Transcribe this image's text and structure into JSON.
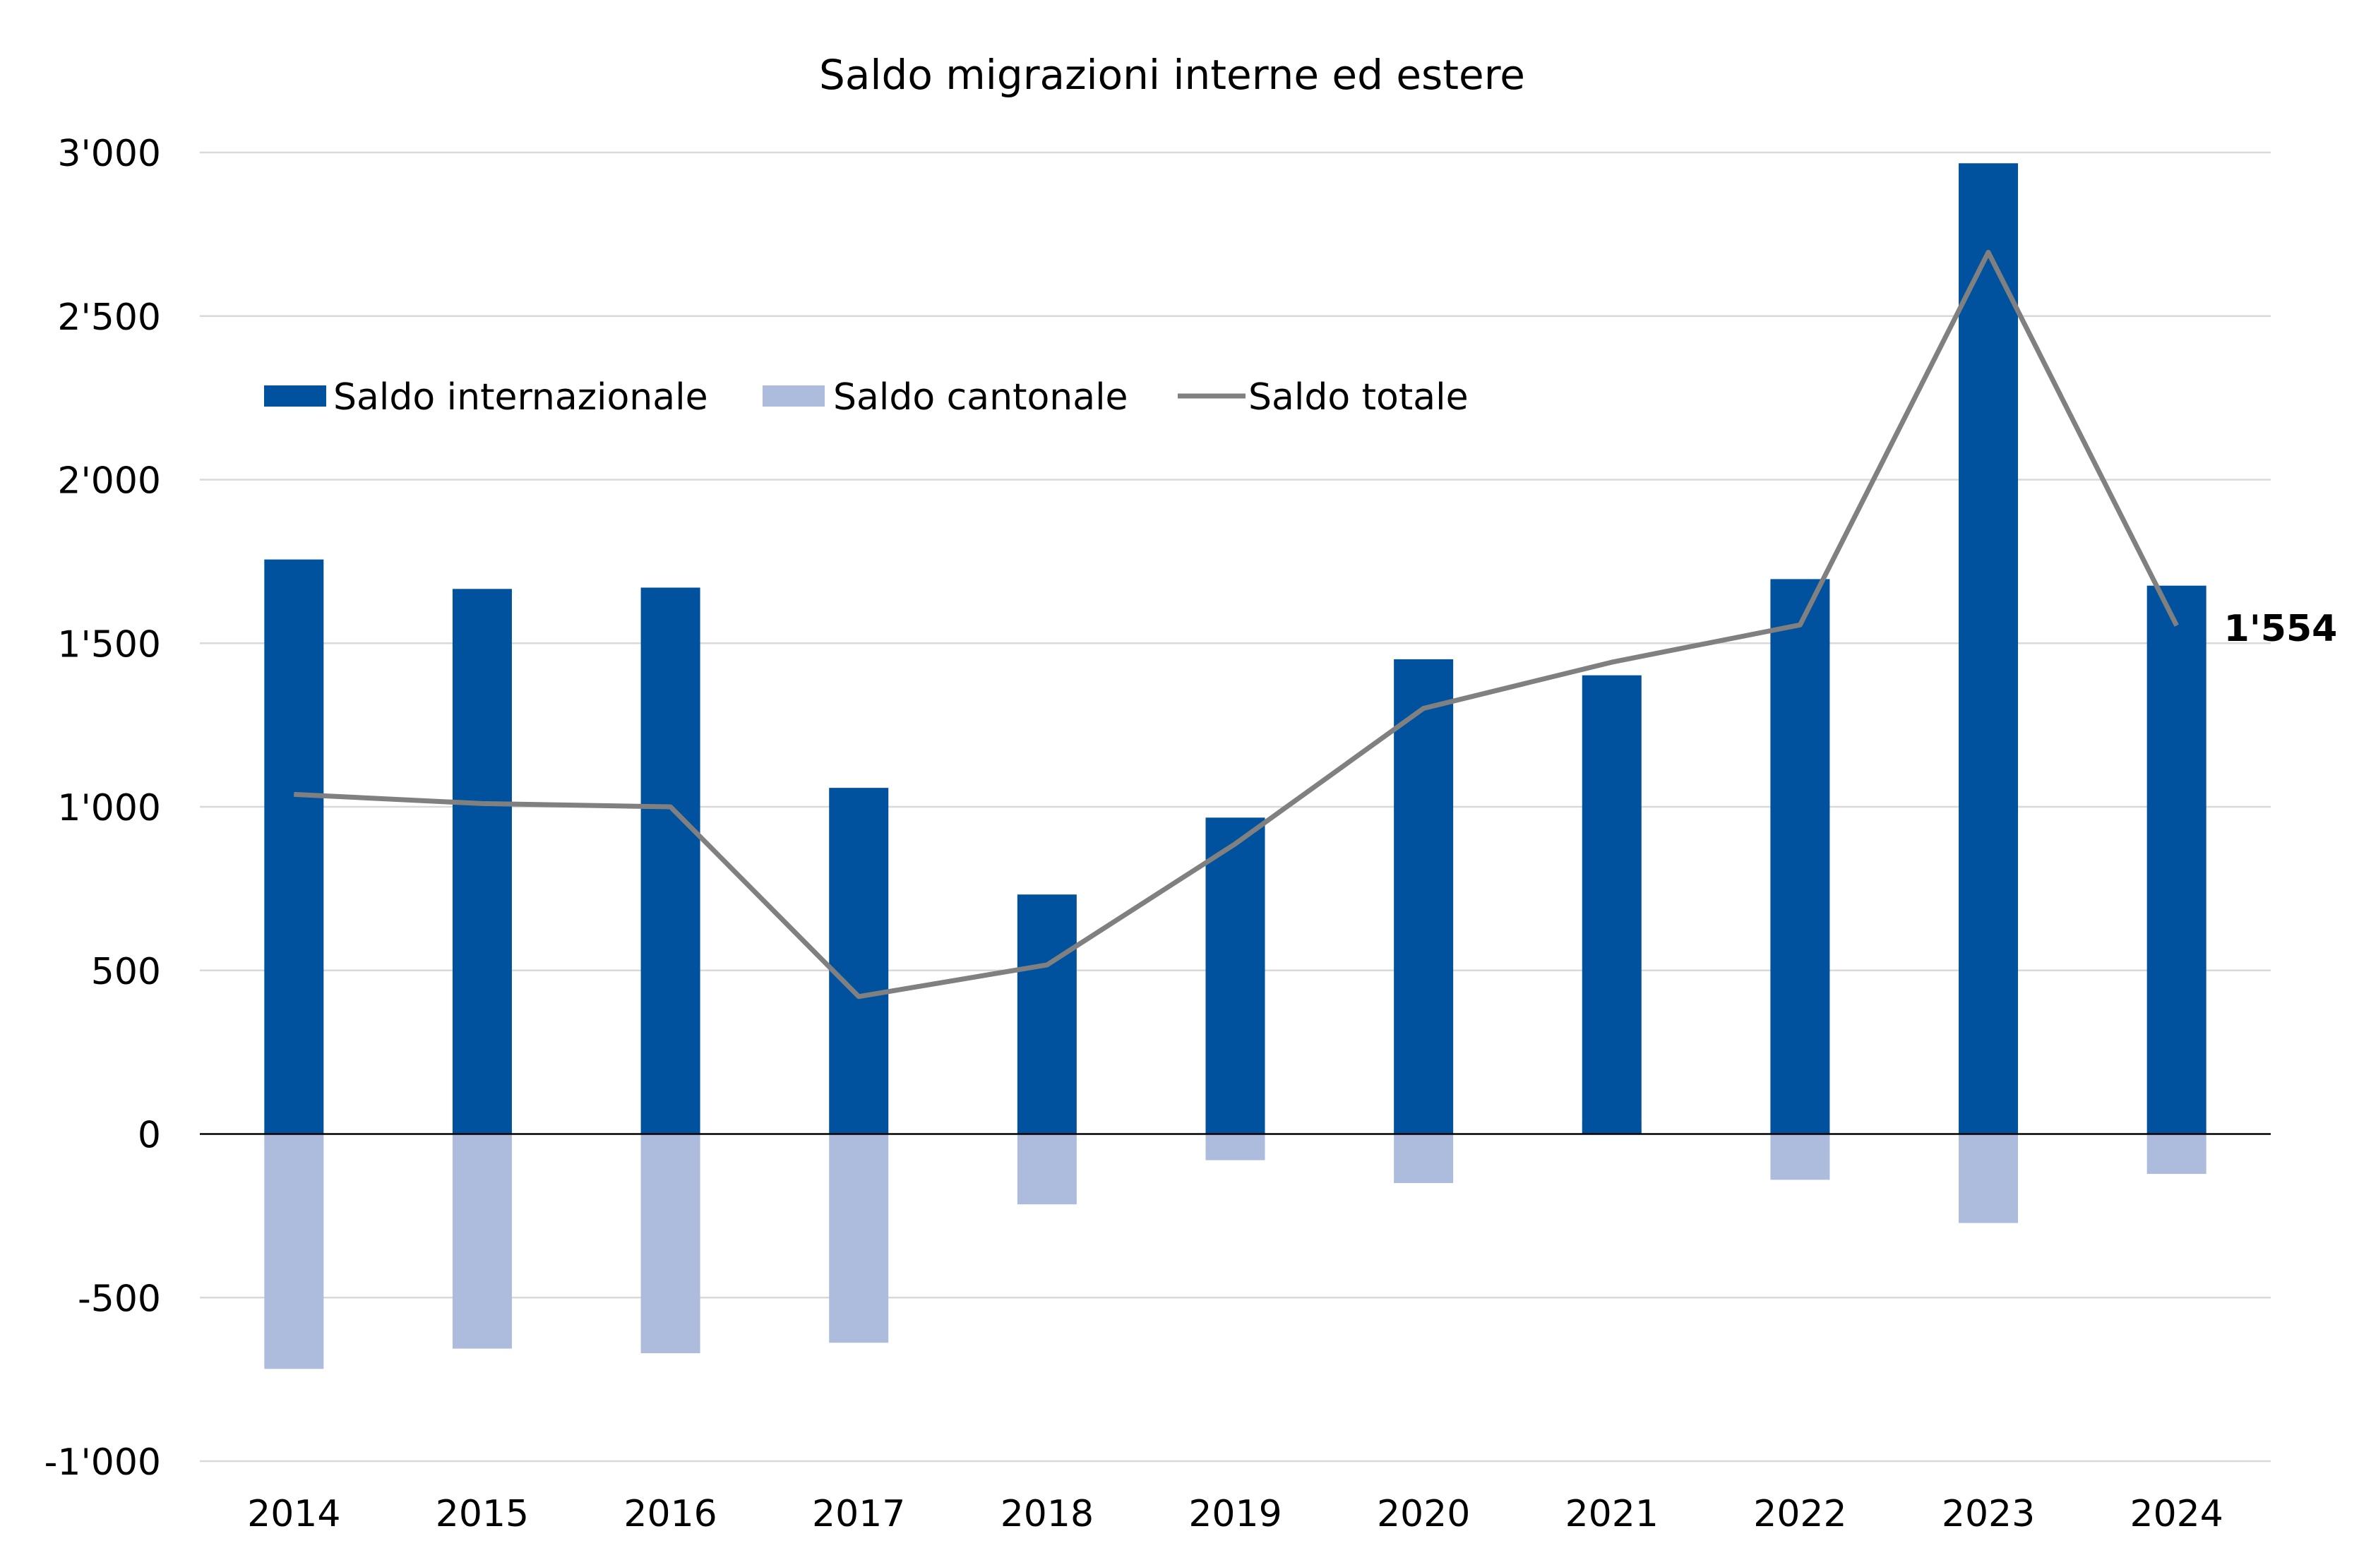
{
  "chart_data": {
    "type": "bar",
    "title": "Saldo migrazioni interne ed estere",
    "categories": [
      "2014",
      "2015",
      "2016",
      "2017",
      "2018",
      "2019",
      "2020",
      "2021",
      "2022",
      "2023",
      "2024"
    ],
    "series": [
      {
        "name": "Saldo internazionale",
        "kind": "bar",
        "color": "#00519e",
        "values": [
          1756,
          1666,
          1670,
          1058,
          732,
          967,
          1451,
          1402,
          1696,
          2967,
          1676
        ]
      },
      {
        "name": "Saldo cantonale",
        "kind": "bar",
        "color": "#adbcdc",
        "values": [
          -718,
          -656,
          -670,
          -638,
          -215,
          -80,
          -150,
          40,
          -140,
          -272,
          -122
        ]
      },
      {
        "name": "Saldo totale",
        "kind": "line",
        "color": "#808080",
        "values": [
          1038,
          1010,
          1000,
          420,
          517,
          887,
          1301,
          1442,
          1556,
          2695,
          1554
        ]
      }
    ],
    "ylim": [
      -1000,
      3000
    ],
    "yticks": [
      -1000,
      -500,
      0,
      500,
      1000,
      1500,
      2000,
      2500,
      3000
    ],
    "ytick_labels": [
      "-1'000",
      "-500",
      "0",
      "500",
      "1'000",
      "1'500",
      "2'000",
      "2'500",
      "3'000"
    ],
    "grid": true,
    "legend_position": "top-left",
    "annotation": {
      "text": "1'554",
      "series": "Saldo totale",
      "category": "2024"
    }
  }
}
